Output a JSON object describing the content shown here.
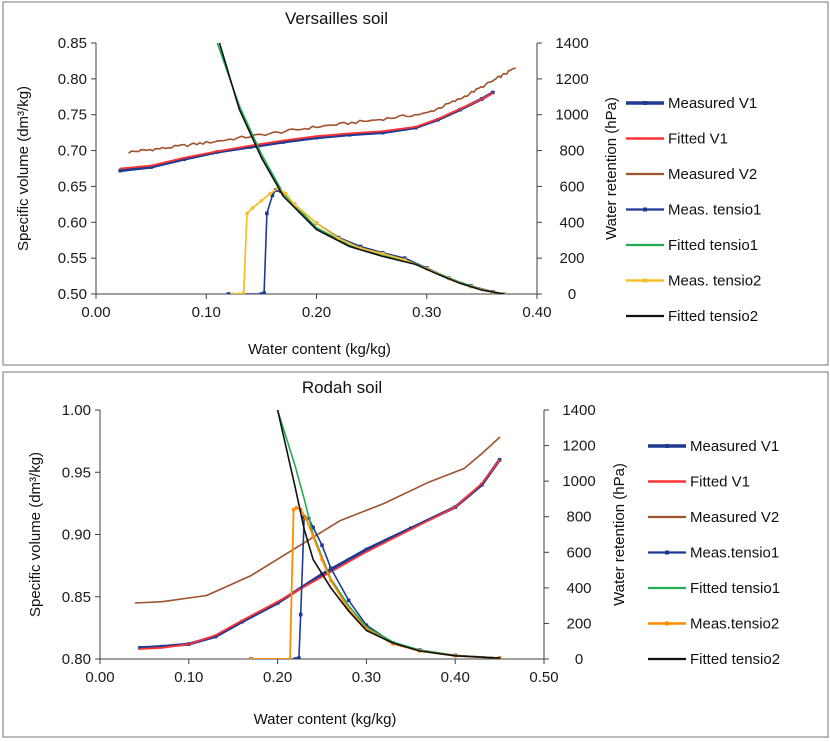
{
  "chart_data": [
    {
      "type": "line",
      "title": "Versailles soil",
      "xlabel": "Water content (kg/kg)",
      "ylabel": "Specific volume (dm³/kg)",
      "y2label": "Water retention  (hPa)",
      "xlim": [
        0.0,
        0.4
      ],
      "ylim": [
        0.5,
        0.85
      ],
      "y2lim": [
        0,
        1400
      ],
      "x_ticks": [
        "0.00",
        "0.10",
        "0.20",
        "0.30",
        "0.40"
      ],
      "y_ticks": [
        "0.50",
        "0.55",
        "0.60",
        "0.65",
        "0.70",
        "0.75",
        "0.80",
        "0.85"
      ],
      "y2_ticks": [
        "0",
        "200",
        "400",
        "600",
        "800",
        "1000",
        "1200",
        "1400"
      ],
      "series": [
        {
          "name": "Measured V1",
          "color": "#1f3a93",
          "width": 3.0,
          "axis": "left",
          "marker": "square",
          "x": [
            0.022,
            0.05,
            0.08,
            0.11,
            0.14,
            0.17,
            0.2,
            0.23,
            0.26,
            0.29,
            0.31,
            0.33,
            0.35,
            0.36
          ],
          "y": [
            0.672,
            0.677,
            0.688,
            0.698,
            0.705,
            0.712,
            0.718,
            0.722,
            0.725,
            0.732,
            0.743,
            0.757,
            0.772,
            0.781
          ]
        },
        {
          "name": "Fitted V1",
          "color": "#ff3333",
          "width": 1.8,
          "axis": "left",
          "x": [
            0.022,
            0.05,
            0.08,
            0.11,
            0.14,
            0.17,
            0.2,
            0.23,
            0.26,
            0.29,
            0.31,
            0.33,
            0.35,
            0.36
          ],
          "y": [
            0.675,
            0.679,
            0.69,
            0.699,
            0.707,
            0.714,
            0.72,
            0.724,
            0.727,
            0.733,
            0.744,
            0.758,
            0.772,
            0.78
          ]
        },
        {
          "name": "Measured V2",
          "color": "#a0522d",
          "width": 1.6,
          "axis": "left",
          "noise": 0.002,
          "x": [
            0.03,
            0.06,
            0.1,
            0.15,
            0.2,
            0.25,
            0.3,
            0.33,
            0.36,
            0.38
          ],
          "y": [
            0.698,
            0.703,
            0.711,
            0.722,
            0.733,
            0.742,
            0.752,
            0.772,
            0.797,
            0.815
          ]
        },
        {
          "name": "Meas. tensio1",
          "color": "#1f3a93",
          "width": 1.6,
          "axis": "right",
          "marker": "square",
          "x": [
            0.12,
            0.15,
            0.1525,
            0.155,
            0.16,
            0.163,
            0.17,
            0.18,
            0.2,
            0.22,
            0.24,
            0.26,
            0.28,
            0.3,
            0.32,
            0.34,
            0.36,
            0.37
          ],
          "y": [
            0,
            0,
            5,
            450,
            550,
            580,
            560,
            500,
            395,
            315,
            265,
            230,
            200,
            145,
            88,
            45,
            12,
            0
          ]
        },
        {
          "name": "Fitted tensio1",
          "color": "#22aa55",
          "width": 1.6,
          "axis": "right",
          "x": [
            0.11,
            0.13,
            0.15,
            0.17,
            0.2,
            0.23,
            0.26,
            0.29,
            0.31,
            0.33,
            0.35,
            0.37
          ],
          "y": [
            1400,
            1050,
            780,
            560,
            370,
            270,
            215,
            170,
            115,
            65,
            25,
            0
          ]
        },
        {
          "name": "Meas. tensio2",
          "color": "#f5c02c",
          "width": 1.8,
          "axis": "right",
          "marker": "dot",
          "x": [
            0.124,
            0.13,
            0.134,
            0.137,
            0.142,
            0.15,
            0.158,
            0.165,
            0.172,
            0.18,
            0.2,
            0.22,
            0.24,
            0.26,
            0.28,
            0.3,
            0.32,
            0.34,
            0.36,
            0.37
          ],
          "y": [
            0,
            0,
            5,
            450,
            480,
            520,
            560,
            590,
            560,
            500,
            395,
            310,
            255,
            225,
            190,
            140,
            85,
            40,
            10,
            0
          ]
        },
        {
          "name": "Fitted tensio2",
          "color": "#111111",
          "width": 1.6,
          "axis": "right",
          "x": [
            0.112,
            0.13,
            0.15,
            0.17,
            0.2,
            0.23,
            0.26,
            0.29,
            0.31,
            0.33,
            0.35,
            0.37
          ],
          "y": [
            1400,
            1030,
            760,
            545,
            360,
            265,
            210,
            165,
            110,
            60,
            22,
            0
          ]
        }
      ]
    },
    {
      "type": "line",
      "title": "Rodah soil",
      "xlabel": "Water content (kg/kg)",
      "ylabel": "Specific volume (dm³/kg)",
      "y2label": "Water retention  (hPa)",
      "xlim": [
        0.0,
        0.5
      ],
      "ylim": [
        0.8,
        1.0
      ],
      "y2lim": [
        0,
        1400
      ],
      "x_ticks": [
        "0.00",
        "0.10",
        "0.20",
        "0.30",
        "0.40",
        "0.50"
      ],
      "y_ticks": [
        "0.80",
        "0.85",
        "0.90",
        "0.95",
        "1.00"
      ],
      "y2_ticks": [
        "0",
        "200",
        "400",
        "600",
        "800",
        "1000",
        "1200",
        "1400"
      ],
      "series": [
        {
          "name": "Measured V1",
          "color": "#1f3a93",
          "width": 3.0,
          "axis": "left",
          "marker": "square",
          "x": [
            0.045,
            0.07,
            0.1,
            0.13,
            0.16,
            0.2,
            0.25,
            0.3,
            0.35,
            0.4,
            0.43,
            0.45
          ],
          "y": [
            0.809,
            0.81,
            0.812,
            0.818,
            0.83,
            0.845,
            0.868,
            0.888,
            0.905,
            0.922,
            0.94,
            0.96
          ]
        },
        {
          "name": "Fitted V1",
          "color": "#ff3333",
          "width": 1.8,
          "axis": "left",
          "x": [
            0.045,
            0.07,
            0.1,
            0.13,
            0.16,
            0.2,
            0.25,
            0.3,
            0.35,
            0.4,
            0.43,
            0.45
          ],
          "y": [
            0.808,
            0.809,
            0.812,
            0.819,
            0.831,
            0.846,
            0.866,
            0.886,
            0.904,
            0.922,
            0.941,
            0.96
          ]
        },
        {
          "name": "Measured V2",
          "color": "#a0522d",
          "width": 1.6,
          "axis": "left",
          "x": [
            0.04,
            0.07,
            0.12,
            0.17,
            0.22,
            0.27,
            0.32,
            0.37,
            0.41,
            0.43,
            0.45
          ],
          "y": [
            0.845,
            0.846,
            0.851,
            0.867,
            0.889,
            0.911,
            0.925,
            0.942,
            0.953,
            0.965,
            0.978
          ]
        },
        {
          "name": "Meas.tensio1",
          "color": "#1f3a93",
          "width": 1.6,
          "axis": "right",
          "marker": "square",
          "x": [
            0.17,
            0.22,
            0.224,
            0.226,
            0.23,
            0.235,
            0.24,
            0.25,
            0.26,
            0.28,
            0.3,
            0.33,
            0.36,
            0.4,
            0.45
          ],
          "y": [
            0,
            0,
            5,
            250,
            800,
            790,
            740,
            640,
            510,
            330,
            190,
            90,
            50,
            20,
            5
          ]
        },
        {
          "name": "Fitted tensio1",
          "color": "#22aa55",
          "width": 1.6,
          "axis": "right",
          "x": [
            0.2,
            0.21,
            0.22,
            0.23,
            0.24,
            0.26,
            0.28,
            0.3,
            0.33,
            0.36,
            0.4,
            0.45
          ],
          "y": [
            1400,
            1240,
            1080,
            900,
            700,
            450,
            300,
            180,
            95,
            50,
            20,
            5
          ]
        },
        {
          "name": "Meas.tensio2",
          "color": "#ff8c00",
          "width": 1.8,
          "axis": "right",
          "marker": "dot",
          "x": [
            0.17,
            0.214,
            0.218,
            0.221,
            0.226,
            0.232,
            0.24,
            0.25,
            0.26,
            0.28,
            0.3,
            0.33,
            0.36,
            0.4,
            0.45
          ],
          "y": [
            0,
            0,
            840,
            850,
            840,
            790,
            690,
            560,
            440,
            280,
            170,
            85,
            45,
            18,
            5
          ]
        },
        {
          "name": "Fitted tensio2",
          "color": "#111111",
          "width": 1.6,
          "axis": "right",
          "x": [
            0.2,
            0.21,
            0.22,
            0.23,
            0.24,
            0.26,
            0.28,
            0.3,
            0.33,
            0.36,
            0.4,
            0.45
          ],
          "y": [
            1400,
            1180,
            960,
            730,
            560,
            400,
            270,
            160,
            90,
            45,
            18,
            5
          ]
        }
      ]
    }
  ]
}
